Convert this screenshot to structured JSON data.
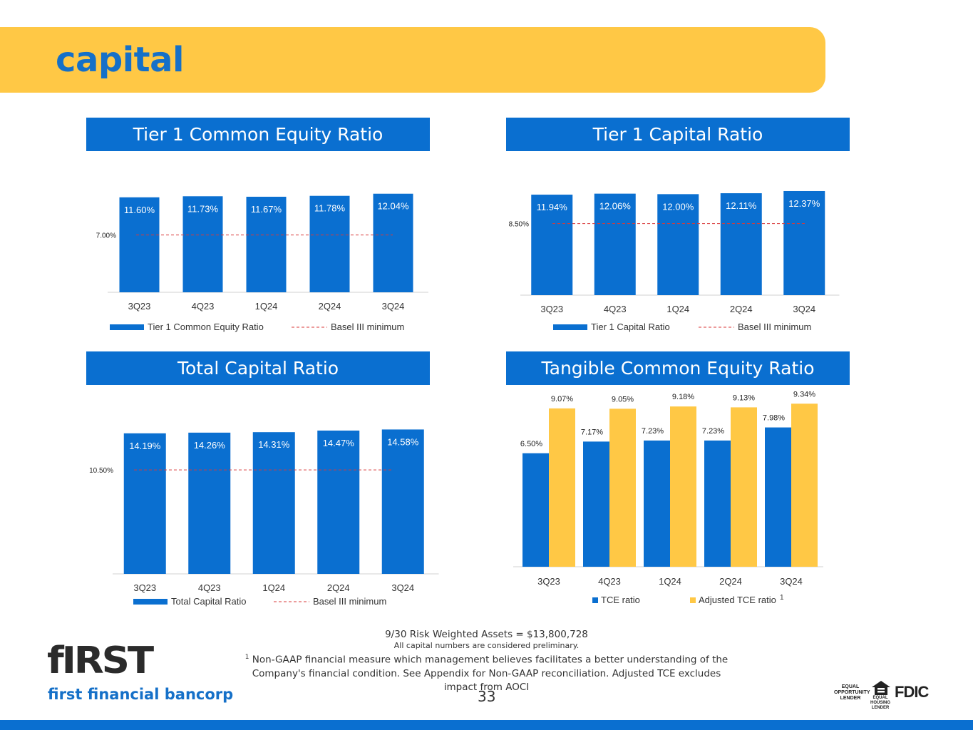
{
  "header": {
    "title": "capital"
  },
  "colors": {
    "primary_blue": "#0a6fd0",
    "accent_yellow": "#ffc845",
    "basel_line": "#d93a3a"
  },
  "chart_data": [
    {
      "type": "bar",
      "title": "Tier 1 Common Equity Ratio",
      "categories": [
        "3Q23",
        "4Q23",
        "1Q24",
        "2Q24",
        "3Q24"
      ],
      "series": [
        {
          "name": "Tier 1 Common Equity Ratio",
          "values": [
            11.6,
            11.73,
            11.67,
            11.78,
            12.04
          ],
          "labels": [
            "11.60%",
            "11.73%",
            "11.67%",
            "11.78%",
            "12.04%"
          ]
        }
      ],
      "reference_line": {
        "name": "Basel III minimum",
        "value": 7.0,
        "label": "7.00%"
      },
      "legend_placement": "bottom",
      "grid": false
    },
    {
      "type": "bar",
      "title": "Tier 1 Capital Ratio",
      "categories": [
        "3Q23",
        "4Q23",
        "1Q24",
        "2Q24",
        "3Q24"
      ],
      "series": [
        {
          "name": "Tier 1 Capital Ratio",
          "values": [
            11.94,
            12.06,
            12.0,
            12.11,
            12.37
          ],
          "labels": [
            "11.94%",
            "12.06%",
            "12.00%",
            "12.11%",
            "12.37%"
          ]
        }
      ],
      "reference_line": {
        "name": "Basel III minimum",
        "value": 8.5,
        "label": "8.50%"
      },
      "legend_placement": "bottom",
      "grid": false
    },
    {
      "type": "bar",
      "title": "Total Capital Ratio",
      "categories": [
        "3Q23",
        "4Q23",
        "1Q24",
        "2Q24",
        "3Q24"
      ],
      "series": [
        {
          "name": "Total Capital Ratio",
          "values": [
            14.19,
            14.26,
            14.31,
            14.47,
            14.58
          ],
          "labels": [
            "14.19%",
            "14.26%",
            "14.31%",
            "14.47%",
            "14.58%"
          ]
        }
      ],
      "reference_line": {
        "name": "Basel III minimum",
        "value": 10.5,
        "label": "10.50%"
      },
      "legend_placement": "bottom",
      "grid": false
    },
    {
      "type": "bar",
      "title": "Tangible Common Equity Ratio",
      "categories": [
        "3Q23",
        "4Q23",
        "1Q24",
        "2Q24",
        "3Q24"
      ],
      "series": [
        {
          "name": "TCE ratio",
          "values": [
            6.5,
            7.17,
            7.23,
            7.23,
            7.98
          ],
          "labels": [
            "6.50%",
            "7.17%",
            "7.23%",
            "7.23%",
            "7.98%"
          ]
        },
        {
          "name": "Adjusted TCE ratio",
          "superscript": "1",
          "values": [
            9.07,
            9.05,
            9.18,
            9.13,
            9.34
          ],
          "labels": [
            "9.07%",
            "9.05%",
            "9.18%",
            "9.13%",
            "9.34%"
          ]
        }
      ],
      "legend_placement": "bottom",
      "grid": false
    }
  ],
  "footnotes": {
    "rwa": "9/30 Risk Weighted Assets = $13,800,728",
    "preliminary": "All capital numbers are considered preliminary.",
    "non_gaap_marker": "1",
    "non_gaap": " Non-GAAP financial measure which management believes facilitates a better understanding of the Company's financial condition.  See Appendix for Non-GAAP reconciliation.  Adjusted TCE excludes impact from AOCI"
  },
  "page_number": "33",
  "logo": {
    "wordmark": "fIRST",
    "name": "first financial bancorp"
  },
  "badges": {
    "equal_opportunity": "EQUAL OPPORTUNITY LENDER",
    "equal_housing": "EQUAL HOUSING LENDER",
    "fdic": "FDIC"
  }
}
